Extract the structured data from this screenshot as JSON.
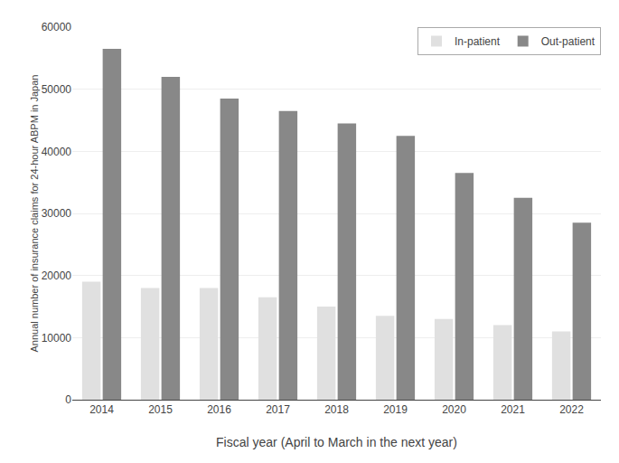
{
  "chart_data": {
    "type": "bar",
    "categories": [
      "2014",
      "2015",
      "2016",
      "2017",
      "2018",
      "2019",
      "2020",
      "2021",
      "2022"
    ],
    "series": [
      {
        "name": "In-patient",
        "color": "#e0e0e0",
        "values": [
          19000,
          18000,
          18000,
          16500,
          15000,
          13500,
          13000,
          12000,
          11000
        ]
      },
      {
        "name": "Out-patient",
        "color": "#888888",
        "values": [
          56500,
          52000,
          48500,
          46500,
          44500,
          42500,
          36500,
          32500,
          28500
        ]
      }
    ],
    "xlabel": "Fiscal year (April to March in the next year)",
    "ylabel": "Annual number of insurance claims for 24-hour ABPM in Japan",
    "ylim": [
      0,
      60000
    ],
    "yticks": [
      0,
      10000,
      20000,
      30000,
      40000,
      50000,
      60000
    ],
    "grid": true,
    "legend": "upper right"
  }
}
